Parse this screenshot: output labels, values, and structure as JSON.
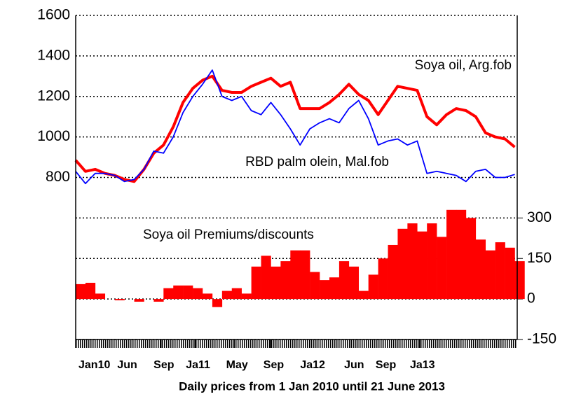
{
  "chart_data": {
    "type": "line",
    "x_label": "Daily prices from 1 Jan 2010 until 21 June 2013",
    "x": [
      0,
      4,
      8,
      12,
      16,
      20,
      24,
      28,
      32,
      36,
      40,
      44,
      48,
      52,
      56,
      60,
      64,
      68,
      72,
      76,
      80,
      84,
      88,
      92,
      96,
      100,
      104,
      108,
      112,
      116,
      120,
      124,
      128,
      132,
      136,
      140,
      144,
      148,
      152,
      156,
      160,
      164,
      168,
      172,
      176,
      180
    ],
    "xlim": [
      0,
      181
    ],
    "xticks": [
      {
        "value": 0,
        "label": "Jan10"
      },
      {
        "value": 20,
        "label": "Jun"
      },
      {
        "value": 35,
        "label": "Sep"
      },
      {
        "value": 49,
        "label": "Ja11"
      },
      {
        "value": 65,
        "label": "May"
      },
      {
        "value": 80,
        "label": "Sep"
      },
      {
        "value": 96,
        "label": "Ja12"
      },
      {
        "value": 113,
        "label": "Jun"
      },
      {
        "value": 126,
        "label": "Sep"
      },
      {
        "value": 141,
        "label": "Ja13"
      }
    ],
    "ylim": [
      0,
      1600
    ],
    "yticks": [
      800,
      1000,
      1200,
      1400,
      1600
    ],
    "y2lim": [
      -150,
      1050
    ],
    "y2ticks": [
      -150,
      0,
      150,
      300
    ],
    "grid": true,
    "series": [
      {
        "name": "Soya oil Premiums/discounts",
        "type": "bar",
        "axis": "y2",
        "color": "#ff0000",
        "values": [
          55,
          60,
          20,
          0,
          -5,
          0,
          -10,
          0,
          -10,
          40,
          50,
          50,
          40,
          20,
          -30,
          30,
          40,
          20,
          120,
          160,
          120,
          140,
          180,
          180,
          100,
          70,
          80,
          140,
          120,
          30,
          90,
          150,
          200,
          260,
          280,
          250,
          280,
          230,
          330,
          330,
          300,
          220,
          180,
          210,
          190,
          140
        ]
      },
      {
        "name": "Soya oil, Arg.fob",
        "type": "line",
        "color": "#ff0000",
        "values": [
          885,
          830,
          840,
          820,
          810,
          790,
          780,
          840,
          920,
          960,
          1050,
          1170,
          1240,
          1280,
          1300,
          1230,
          1220,
          1220,
          1250,
          1270,
          1290,
          1250,
          1270,
          1140,
          1140,
          1140,
          1170,
          1210,
          1260,
          1210,
          1180,
          1110,
          1180,
          1250,
          1240,
          1230,
          1100,
          1060,
          1110,
          1140,
          1130,
          1100,
          1020,
          1000,
          990,
          950
        ]
      },
      {
        "name": "RBD palm olein, Mal.fob",
        "type": "line",
        "color": "#0000ff",
        "values": [
          830,
          770,
          820,
          820,
          810,
          780,
          790,
          840,
          930,
          920,
          1000,
          1120,
          1200,
          1260,
          1330,
          1200,
          1180,
          1200,
          1130,
          1110,
          1170,
          1110,
          1040,
          960,
          1040,
          1070,
          1090,
          1070,
          1140,
          1180,
          1090,
          960,
          980,
          990,
          960,
          980,
          820,
          830,
          820,
          810,
          780,
          830,
          840,
          800,
          800,
          815
        ]
      }
    ]
  }
}
